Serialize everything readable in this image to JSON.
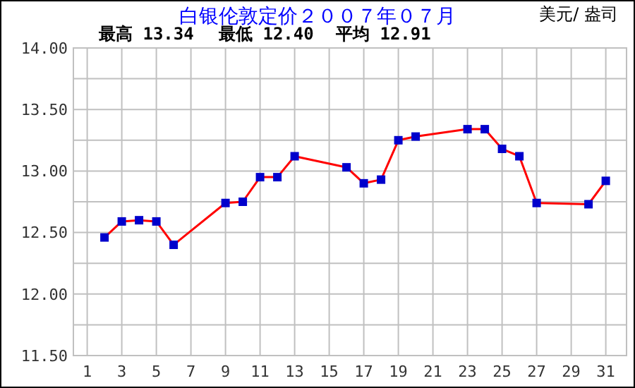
{
  "chart_data": {
    "type": "line",
    "title": "白银伦敦定价２００７年０７月",
    "ylabel": "美元/ 盎司",
    "annotations": [
      "最高 13.34",
      "最低 12.40",
      "平均 12.91"
    ],
    "series": [
      {
        "color": "#ff0000",
        "x": [
          2,
          3,
          4,
          5,
          6,
          9,
          10,
          11,
          12,
          13,
          16,
          17,
          18,
          19,
          20,
          23,
          24,
          25,
          26,
          27,
          30,
          31
        ],
        "values": [
          12.46,
          12.59,
          12.6,
          12.59,
          12.4,
          12.74,
          12.75,
          12.95,
          12.95,
          13.12,
          13.03,
          12.9,
          12.93,
          13.25,
          13.28,
          13.34,
          13.34,
          13.18,
          13.12,
          12.74,
          12.73,
          12.92
        ]
      }
    ],
    "xlim": [
      0.2,
      32.2
    ],
    "xticks": [
      1,
      3,
      5,
      7,
      9,
      11,
      13,
      15,
      17,
      19,
      21,
      23,
      25,
      27,
      29,
      31
    ],
    "ylim": [
      11.5,
      14
    ],
    "yticks": [
      {
        "value": 11.5,
        "label": "11.50"
      },
      {
        "value": 11.75,
        "label": null
      },
      {
        "value": 12,
        "label": "12.00"
      },
      {
        "value": 12.25,
        "label": null
      },
      {
        "value": 12.5,
        "label": "12.50"
      },
      {
        "value": 12.75,
        "label": null
      },
      {
        "value": 13,
        "label": "13.00"
      },
      {
        "value": 13.25,
        "label": null
      },
      {
        "value": 13.5,
        "label": "13.50"
      },
      {
        "value": 13.75,
        "label": null
      },
      {
        "value": 14,
        "label": "14.00"
      }
    ],
    "grid": true,
    "marker": "square",
    "line_style": "solid"
  }
}
